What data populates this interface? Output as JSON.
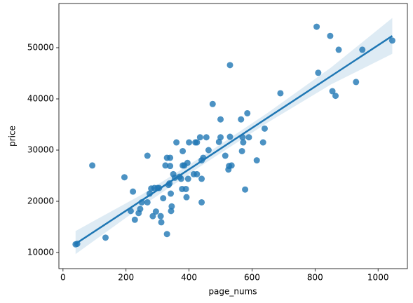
{
  "chart_data": {
    "type": "regplot",
    "x_label": "page_nums",
    "y_label": "price",
    "xlim": [
      -13,
      1093
    ],
    "ylim": [
      6850,
      58630
    ],
    "xticks": [
      0,
      200,
      400,
      600,
      800,
      1000
    ],
    "yticks": [
      10000,
      20000,
      30000,
      40000,
      50000
    ],
    "color": "#1f77b4",
    "series": [
      {
        "color": "#1f77b4",
        "x": [
          40,
          45,
          93,
          135,
          195,
          215,
          222,
          228,
          240,
          245,
          250,
          268,
          268,
          275,
          280,
          285,
          290,
          295,
          300,
          305,
          310,
          312,
          318,
          325,
          330,
          330,
          335,
          338,
          340,
          340,
          342,
          343,
          345,
          350,
          355,
          360,
          370,
          375,
          378,
          380,
          380,
          385,
          390,
          392,
          395,
          397,
          400,
          415,
          420,
          425,
          425,
          435,
          440,
          440,
          440,
          445,
          455,
          462,
          475,
          495,
          500,
          500,
          515,
          525,
          527,
          530,
          530,
          535,
          565,
          568,
          570,
          572,
          578,
          585,
          590,
          615,
          635,
          640,
          690,
          805,
          810,
          848,
          855,
          865,
          875,
          930,
          950,
          1045
        ],
        "y": [
          11600,
          11700,
          27000,
          12900,
          24700,
          18100,
          21900,
          16400,
          17700,
          18500,
          19800,
          28900,
          19800,
          21500,
          22500,
          17100,
          22600,
          18000,
          22600,
          22600,
          17100,
          15900,
          20600,
          27000,
          28500,
          13600,
          23200,
          23500,
          28500,
          26900,
          21500,
          18100,
          19000,
          25300,
          24600,
          31500,
          24800,
          24400,
          22400,
          27000,
          29800,
          27000,
          22400,
          20800,
          27500,
          24400,
          31500,
          25300,
          31500,
          31500,
          25300,
          32500,
          28000,
          24400,
          19800,
          28500,
          32500,
          30000,
          39000,
          31600,
          36000,
          32500,
          28900,
          26200,
          26900,
          46600,
          32600,
          27000,
          36000,
          29800,
          32500,
          31500,
          22300,
          37200,
          32500,
          28000,
          31500,
          34200,
          41100,
          54100,
          45100,
          52300,
          41500,
          40600,
          49600,
          43300,
          49600,
          51400
        ]
      }
    ],
    "fit": {
      "x": [
        40,
        250,
        450,
        650,
        850,
        1045
      ],
      "y": [
        11700,
        20180,
        28260,
        36340,
        44420,
        52300
      ],
      "upper": [
        14200,
        21300,
        29100,
        37300,
        46100,
        55800
      ],
      "lower": [
        9700,
        19000,
        27400,
        35400,
        42800,
        48800
      ]
    }
  }
}
